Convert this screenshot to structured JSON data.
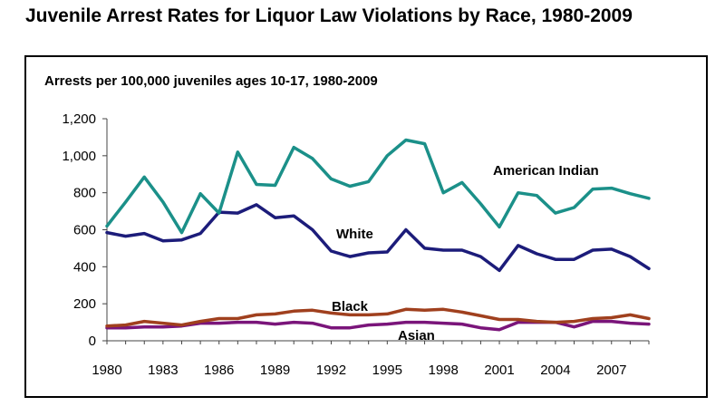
{
  "title": "Juvenile Arrest Rates for Liquor Law Violations by Race, 1980-2009",
  "chart_data": {
    "type": "line",
    "title": "Juvenile Arrest Rates for Liquor Law Violations by Race, 1980-2009",
    "subtitle": "Arrests per 100,000 juveniles ages 10-17, 1980-2009",
    "xlabel": "",
    "ylabel": "",
    "x": [
      1980,
      1981,
      1982,
      1983,
      1984,
      1985,
      1986,
      1987,
      1988,
      1989,
      1990,
      1991,
      1992,
      1993,
      1994,
      1995,
      1996,
      1997,
      1998,
      1999,
      2000,
      2001,
      2002,
      2003,
      2004,
      2005,
      2006,
      2007,
      2008,
      2009
    ],
    "x_tick_labels": [
      "1980",
      "1983",
      "1986",
      "1989",
      "1992",
      "1995",
      "1998",
      "2001",
      "2004",
      "2007"
    ],
    "xlim": [
      1980,
      2009
    ],
    "ylim": [
      0,
      1200
    ],
    "y_tick_labels": [
      "0",
      "200",
      "400",
      "600",
      "800",
      "1,000",
      "1,200"
    ],
    "grid": false,
    "legend": "direct labels on lines",
    "series": [
      {
        "name": "American Indian",
        "color": "#1b9089",
        "values": [
          620,
          750,
          885,
          750,
          585,
          795,
          690,
          1020,
          845,
          840,
          1045,
          985,
          875,
          835,
          860,
          1000,
          1085,
          1065,
          800,
          855,
          740,
          615,
          800,
          785,
          690,
          720,
          820,
          825,
          795,
          770
        ]
      },
      {
        "name": "White",
        "color": "#1c1c7a",
        "values": [
          585,
          565,
          580,
          540,
          545,
          580,
          695,
          690,
          735,
          665,
          675,
          600,
          485,
          455,
          475,
          480,
          600,
          500,
          490,
          490,
          455,
          380,
          515,
          470,
          440,
          440,
          490,
          495,
          455,
          390
        ]
      },
      {
        "name": "Black",
        "color": "#a0401e",
        "values": [
          80,
          85,
          105,
          95,
          85,
          105,
          120,
          120,
          140,
          145,
          160,
          165,
          150,
          140,
          140,
          145,
          170,
          165,
          170,
          155,
          135,
          115,
          115,
          105,
          100,
          105,
          120,
          125,
          140,
          120
        ]
      },
      {
        "name": "Asian",
        "color": "#7a157a",
        "values": [
          70,
          70,
          75,
          75,
          80,
          95,
          95,
          100,
          100,
          90,
          100,
          95,
          70,
          70,
          85,
          90,
          100,
          100,
          95,
          90,
          70,
          60,
          100,
          100,
          100,
          75,
          105,
          105,
          95,
          90
        ]
      }
    ]
  }
}
